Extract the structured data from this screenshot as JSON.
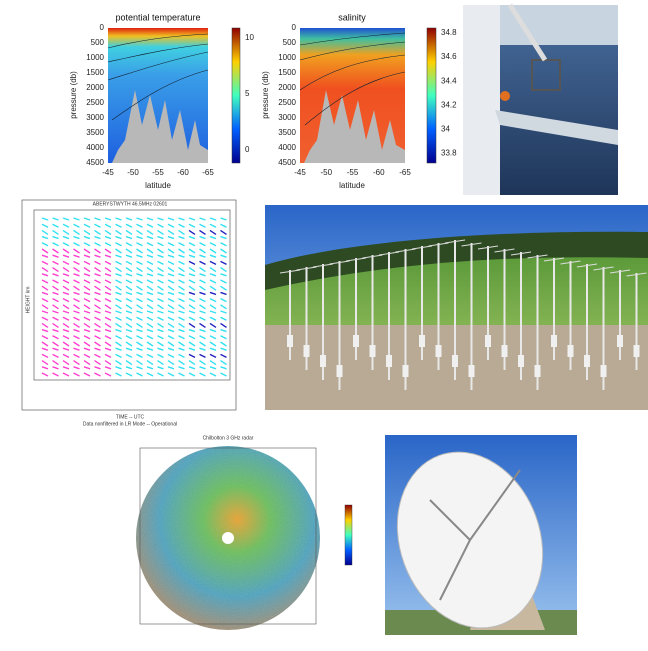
{
  "panels": {
    "temperature": {
      "title": "potential temperature",
      "ylabel": "pressure (db)",
      "xlabel": "latitude",
      "yticks": [
        "0",
        "500",
        "1000",
        "1500",
        "2000",
        "2500",
        "3000",
        "3500",
        "4000",
        "4500"
      ],
      "xticks": [
        "-45",
        "-50",
        "-55",
        "-60",
        "-65"
      ],
      "colorbar": [
        "10",
        "5",
        "0"
      ]
    },
    "salinity": {
      "title": "salinity",
      "ylabel": "pressure (db)",
      "xlabel": "latitude",
      "yticks": [
        "0",
        "500",
        "1000",
        "1500",
        "2000",
        "2500",
        "3000",
        "3500",
        "4000",
        "4500"
      ],
      "xticks": [
        "-45",
        "-50",
        "-55",
        "-60",
        "-65"
      ],
      "colorbar": [
        "34.8",
        "34.6",
        "34.4",
        "34.2",
        "34",
        "33.8"
      ]
    },
    "profiler": {
      "title": "ABERYSTWYTH 46.5MHz 02601",
      "ylabel": "HEIGHT km",
      "xlabel": "TIME -- UTC",
      "note": "Data nonfiltered in LR Mode -- Operational"
    },
    "radar": {
      "title": "Chilbolton 3 GHz radar"
    }
  }
}
